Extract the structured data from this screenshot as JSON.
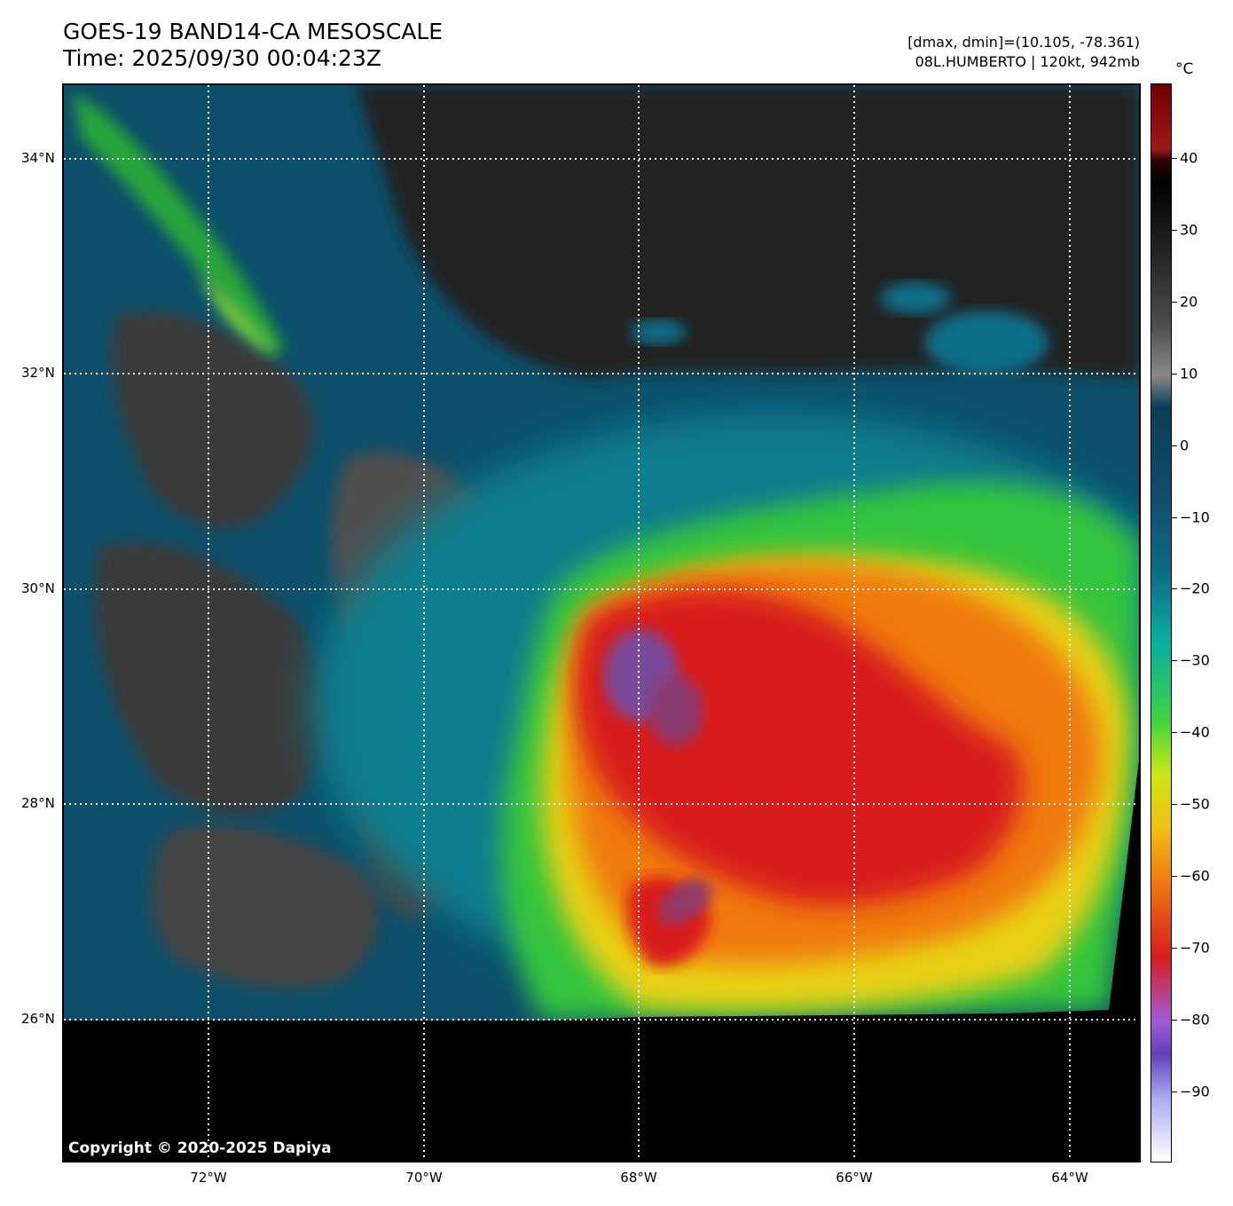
{
  "title_line1": "GOES-19 BAND14-CA MESOSCALE",
  "title_line2": "Time: 2025/09/30 00:04:23Z",
  "range_text": "[dmax, dmin]=(10.105, -78.361)",
  "storm_text": "08L.HUMBERTO | 120kt, 942mb",
  "colorbar": {
    "unit": "°C",
    "ticks": [
      "40",
      "30",
      "20",
      "10",
      "0",
      "−10",
      "−20",
      "−30",
      "−40",
      "−50",
      "−60",
      "−70",
      "−80",
      "−90"
    ]
  },
  "lat_labels": [
    "34°N",
    "32°N",
    "30°N",
    "28°N",
    "26°N"
  ],
  "lon_labels": [
    "72°W",
    "70°W",
    "68°W",
    "66°W",
    "64°W"
  ],
  "copyright": "Copyright © 2020-2025 Dapiya",
  "colors": {
    "warm_ocean": "#1c1c1c",
    "low_cloud": "#555555",
    "cool_cloud": "#0a5c7a",
    "cold_cloud": "#3fd23f",
    "very_cold": "#f2c012",
    "coldest": "#d81c1c",
    "eye_region": "#6a4a8a",
    "no_data": "#000000"
  }
}
